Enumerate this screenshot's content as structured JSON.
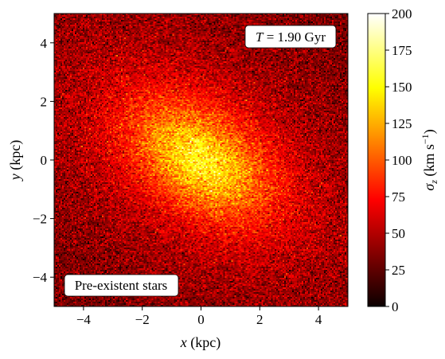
{
  "chart_data": {
    "type": "heatmap",
    "title": "",
    "xlabel": {
      "var": "x",
      "unit": " (kpc)"
    },
    "ylabel": {
      "var": "y",
      "unit": " (kpc)"
    },
    "xlim": [
      -5,
      5
    ],
    "ylim": [
      -5,
      5
    ],
    "xticks": [
      {
        "value": -4,
        "label": "−4"
      },
      {
        "value": -2,
        "label": "−2"
      },
      {
        "value": 0,
        "label": "0"
      },
      {
        "value": 2,
        "label": "2"
      },
      {
        "value": 4,
        "label": "4"
      }
    ],
    "yticks": [
      {
        "value": -4,
        "label": "−4"
      },
      {
        "value": -2,
        "label": "−2"
      },
      {
        "value": 0,
        "label": "0"
      },
      {
        "value": 2,
        "label": "2"
      },
      {
        "value": 4,
        "label": "4"
      }
    ],
    "colormap": "hot",
    "colorbar": {
      "label": {
        "sym": "σ",
        "sub": "z",
        "unit_open": " (km s",
        "sup": "−1",
        "unit_close": ")"
      },
      "range": [
        0,
        200
      ],
      "ticks": [
        {
          "value": 0,
          "label": "0"
        },
        {
          "value": 25,
          "label": "25"
        },
        {
          "value": 50,
          "label": "50"
        },
        {
          "value": 75,
          "label": "75"
        },
        {
          "value": 100,
          "label": "100"
        },
        {
          "value": 125,
          "label": "125"
        },
        {
          "value": 150,
          "label": "150"
        },
        {
          "value": 175,
          "label": "175"
        },
        {
          "value": 200,
          "label": "200"
        }
      ]
    },
    "field": {
      "description_note": "velocity dispersion map peaking at the centre, elongated along a diagonal bar",
      "center": [
        0,
        0
      ],
      "peak_value": 155,
      "background_value": 25,
      "major_axis_angle_deg": -35,
      "scale_major_kpc": 2.6,
      "scale_minor_kpc": 1.6,
      "noise_level": 18
    },
    "annotations": {
      "time": {
        "sym": "T",
        "text": " = 1.90 Gyr"
      },
      "population": "Pre-existent stars"
    }
  }
}
